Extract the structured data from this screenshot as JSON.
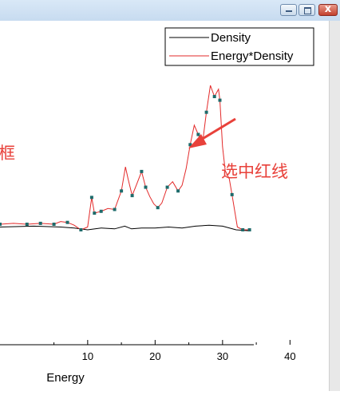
{
  "window": {
    "controls": [
      "minimize",
      "maximize",
      "close"
    ],
    "close_glyph": "x"
  },
  "chart_data": {
    "type": "line",
    "xlabel": "Energy",
    "ylabel": "",
    "xlim": [
      -3,
      46
    ],
    "ylim": [
      -8,
      34
    ],
    "x_ticks": [
      10,
      20,
      30,
      40
    ],
    "grid": false,
    "legend": {
      "placement": "top-right",
      "entries": [
        "Density",
        "Energy*Density"
      ]
    },
    "series": [
      {
        "name": "Density",
        "color": "#000000",
        "points": [
          [
            -3,
            0.3
          ],
          [
            2,
            0.4
          ],
          [
            6,
            0.3
          ],
          [
            8,
            0.2
          ],
          [
            10,
            0.0
          ],
          [
            12,
            0.2
          ],
          [
            14,
            0.1
          ],
          [
            15.5,
            0.4
          ],
          [
            16.5,
            0.1
          ],
          [
            18,
            0.2
          ],
          [
            20,
            0.2
          ],
          [
            22,
            0.3
          ],
          [
            24,
            0.2
          ],
          [
            26,
            0.4
          ],
          [
            28,
            0.5
          ],
          [
            30,
            0.4
          ],
          [
            32,
            0.0
          ],
          [
            34,
            -0.1
          ]
        ]
      },
      {
        "name": "Energy*Density",
        "color": "#e32a2a",
        "marker_color": "#1d6b6b",
        "points": [
          [
            -3,
            0.6
          ],
          [
            -1,
            0.7
          ],
          [
            1,
            0.6
          ],
          [
            3,
            0.7
          ],
          [
            5,
            0.6
          ],
          [
            6,
            0.9
          ],
          [
            7,
            0.8
          ],
          [
            8,
            0.5
          ],
          [
            9,
            0.0
          ],
          [
            10,
            0.3
          ],
          [
            10.6,
            3.5
          ],
          [
            11,
            1.8
          ],
          [
            12,
            2.0
          ],
          [
            13,
            2.3
          ],
          [
            14,
            2.2
          ],
          [
            15,
            4.2
          ],
          [
            15.6,
            6.8
          ],
          [
            16,
            5.5
          ],
          [
            16.6,
            3.7
          ],
          [
            17.2,
            4.8
          ],
          [
            18,
            6.3
          ],
          [
            18.6,
            4.6
          ],
          [
            19.2,
            3.6
          ],
          [
            19.8,
            2.8
          ],
          [
            20.4,
            2.4
          ],
          [
            21,
            2.9
          ],
          [
            21.8,
            4.6
          ],
          [
            22.6,
            5.2
          ],
          [
            23.4,
            4.2
          ],
          [
            24,
            4.8
          ],
          [
            24.6,
            6.6
          ],
          [
            25.2,
            9.2
          ],
          [
            25.8,
            11.3
          ],
          [
            26.4,
            10.3
          ],
          [
            27,
            9.2
          ],
          [
            27.6,
            12.7
          ],
          [
            28.2,
            15.6
          ],
          [
            28.8,
            14.4
          ],
          [
            29.4,
            15.2
          ],
          [
            29.6,
            14.0
          ],
          [
            30,
            9.0
          ],
          [
            30.4,
            6.4
          ],
          [
            31,
            5.5
          ],
          [
            31.4,
            3.8
          ],
          [
            32.2,
            0.3
          ],
          [
            33,
            0.0
          ],
          [
            34,
            0.0
          ]
        ],
        "marker_points": [
          [
            -3,
            0.6
          ],
          [
            1,
            0.6
          ],
          [
            3,
            0.7
          ],
          [
            5,
            0.6
          ],
          [
            7,
            0.8
          ],
          [
            9,
            0.0
          ],
          [
            10.6,
            3.5
          ],
          [
            11,
            1.8
          ],
          [
            12,
            2.0
          ],
          [
            14,
            2.2
          ],
          [
            15,
            4.2
          ],
          [
            16.6,
            3.7
          ],
          [
            18,
            6.3
          ],
          [
            18.6,
            4.6
          ],
          [
            20.4,
            2.4
          ],
          [
            21.8,
            4.6
          ],
          [
            23.4,
            4.2
          ],
          [
            25.2,
            9.2
          ],
          [
            26.4,
            10.3
          ],
          [
            27.6,
            12.7
          ],
          [
            28.8,
            14.4
          ],
          [
            29.6,
            14.0
          ],
          [
            31.4,
            3.8
          ],
          [
            33,
            0.0
          ],
          [
            34,
            0.0
          ]
        ]
      }
    ]
  },
  "annotations": {
    "left_fragment": "框",
    "right_label": "选中红线"
  }
}
